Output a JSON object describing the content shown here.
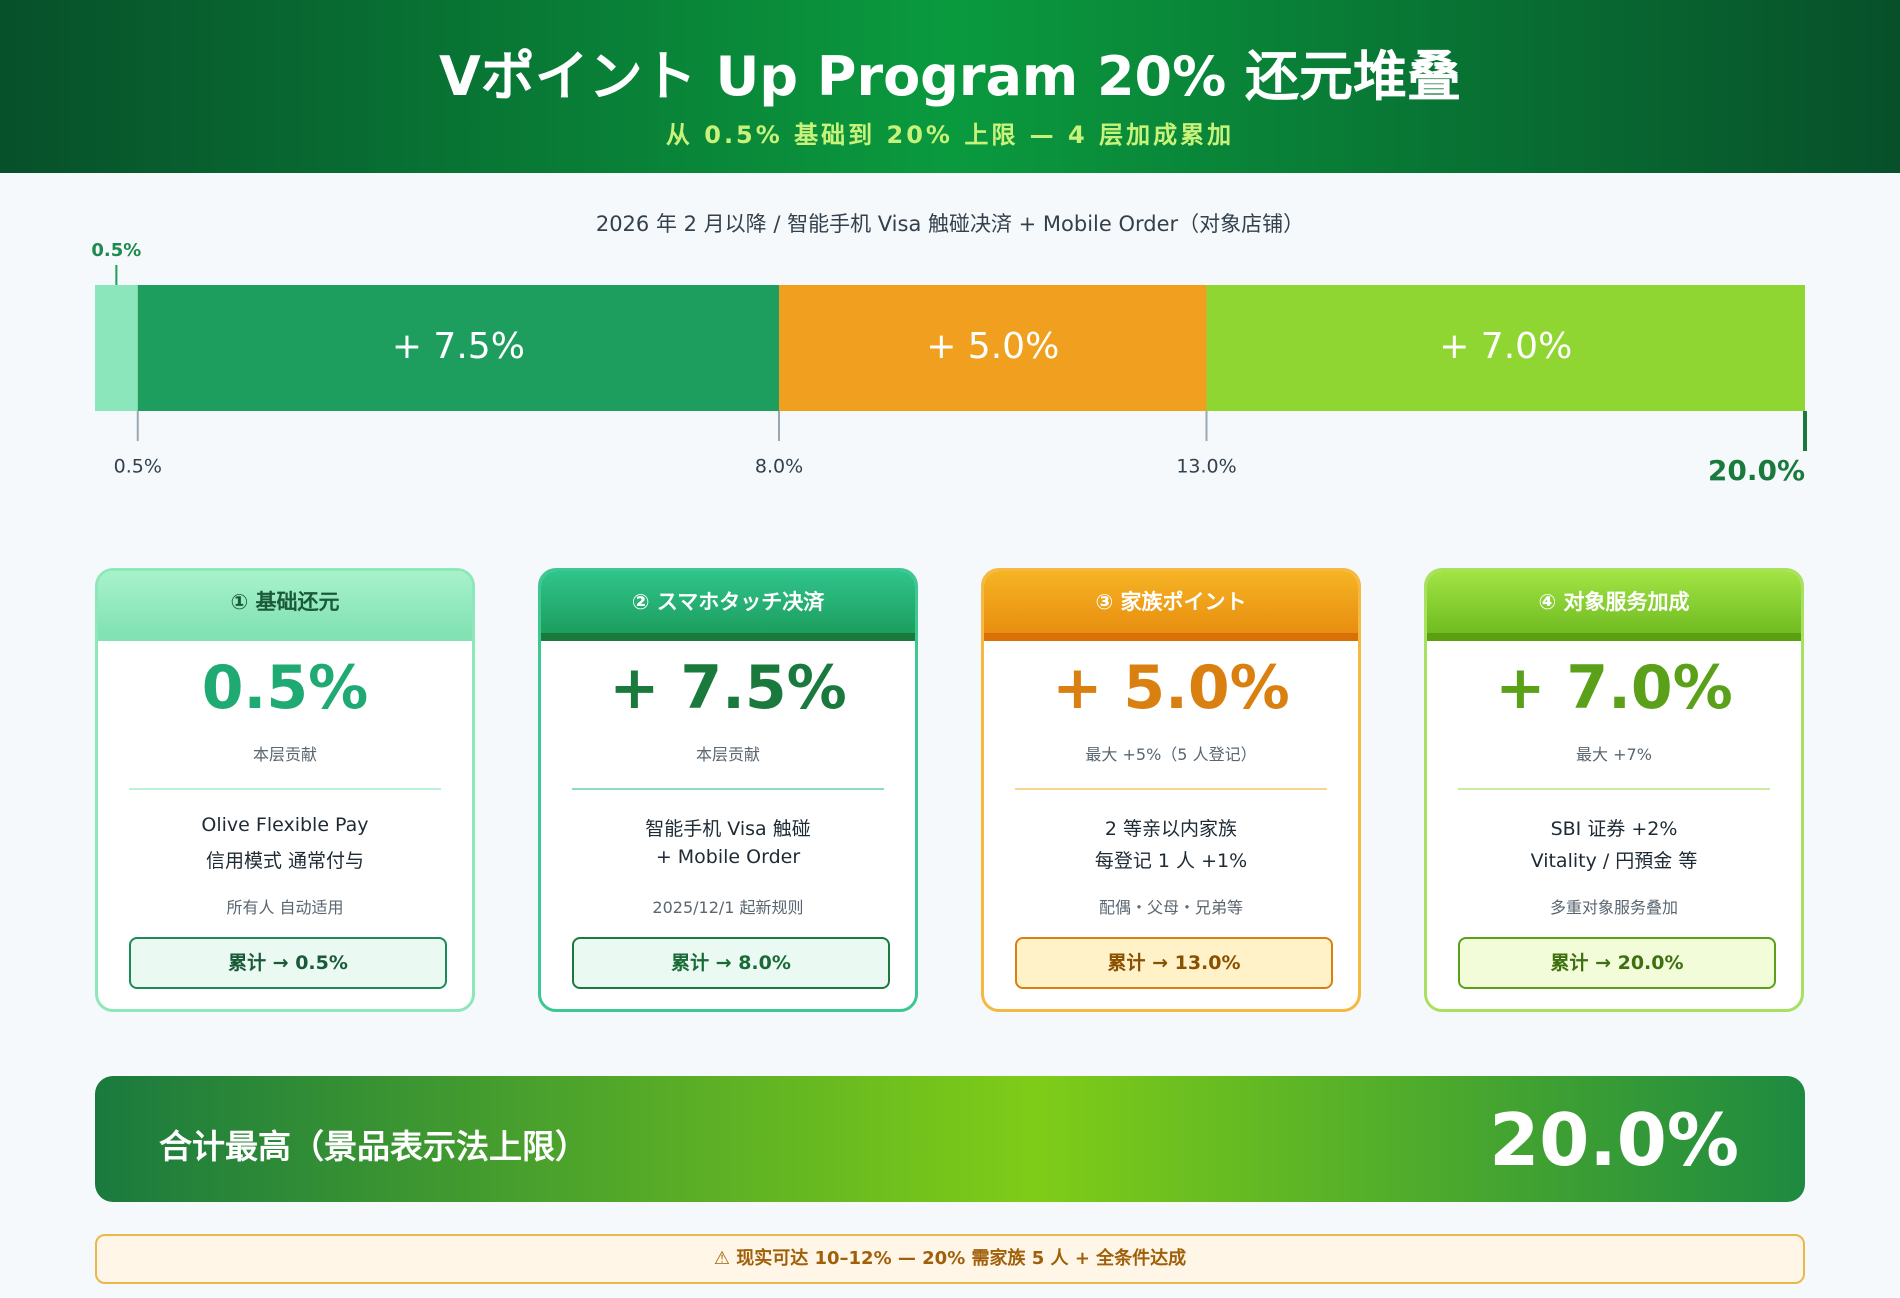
{
  "header": {
    "title": "Vポイント Up Program 20% 还元堆叠",
    "subtitle": "从 0.5% 基础到 20% 上限 — 4 层加成累加"
  },
  "chart_data": {
    "type": "stacked-bar",
    "orientation": "horizontal",
    "subtitle": "2026 年 2 月以降 / 智能手机 Visa 触碰决済 + Mobile Order（对象店铺）",
    "values": [
      0.5,
      7.5,
      5.0,
      7.0
    ],
    "value_labels": [
      "0.5%",
      "+ 7.5%",
      "+ 5.0%",
      "+ 7.0%"
    ],
    "colors": [
      "#8be6bb",
      "#1e9e5e",
      "#f0a01e",
      "#8fd632"
    ],
    "xlim": [
      0,
      20
    ],
    "xticks": [
      {
        "value": 0.5,
        "label": "0.5%"
      },
      {
        "value": 8.0,
        "label": "8.0%"
      },
      {
        "value": 13.0,
        "label": "13.0%"
      },
      {
        "value": 20.0,
        "label": "20.0%"
      }
    ]
  },
  "cards": [
    {
      "title": "① 基础还元",
      "value": "0.5%",
      "caption": "本层贡献",
      "desc": [
        "Olive Flexible Pay",
        "信用模式 通常付与"
      ],
      "note": "所有人 自动适用",
      "total": "累计 → 0.5%"
    },
    {
      "title": "② スマホタッチ决済",
      "value": "+ 7.5%",
      "caption": "本层贡献",
      "desc": [
        "智能手机 Visa 触碰",
        "+ Mobile Order"
      ],
      "note": "2025/12/1 起新规则",
      "total": "累计 → 8.0%"
    },
    {
      "title": "③ 家族ポイント",
      "value": "+ 5.0%",
      "caption": "最大 +5%（5 人登记）",
      "desc": [
        "2 等亲以内家族",
        "每登记 1 人 +1%"
      ],
      "note": "配偶・父母・兄弟等",
      "total": "累计 → 13.0%"
    },
    {
      "title": "④ 对象服务加成",
      "value": "+ 7.0%",
      "caption": "最大 +7%",
      "desc": [
        "SBI 证券 +2%",
        "Vitality / 円預金 等"
      ],
      "note": "多重对象服务叠加",
      "total": "累计 → 20.0%"
    }
  ],
  "total": {
    "label": "合计最高（景品表示法上限）",
    "value": "20.0%"
  },
  "warning": "⚠ 现实可达 10–12% — 20% 需家族 5 人 + 全条件达成"
}
